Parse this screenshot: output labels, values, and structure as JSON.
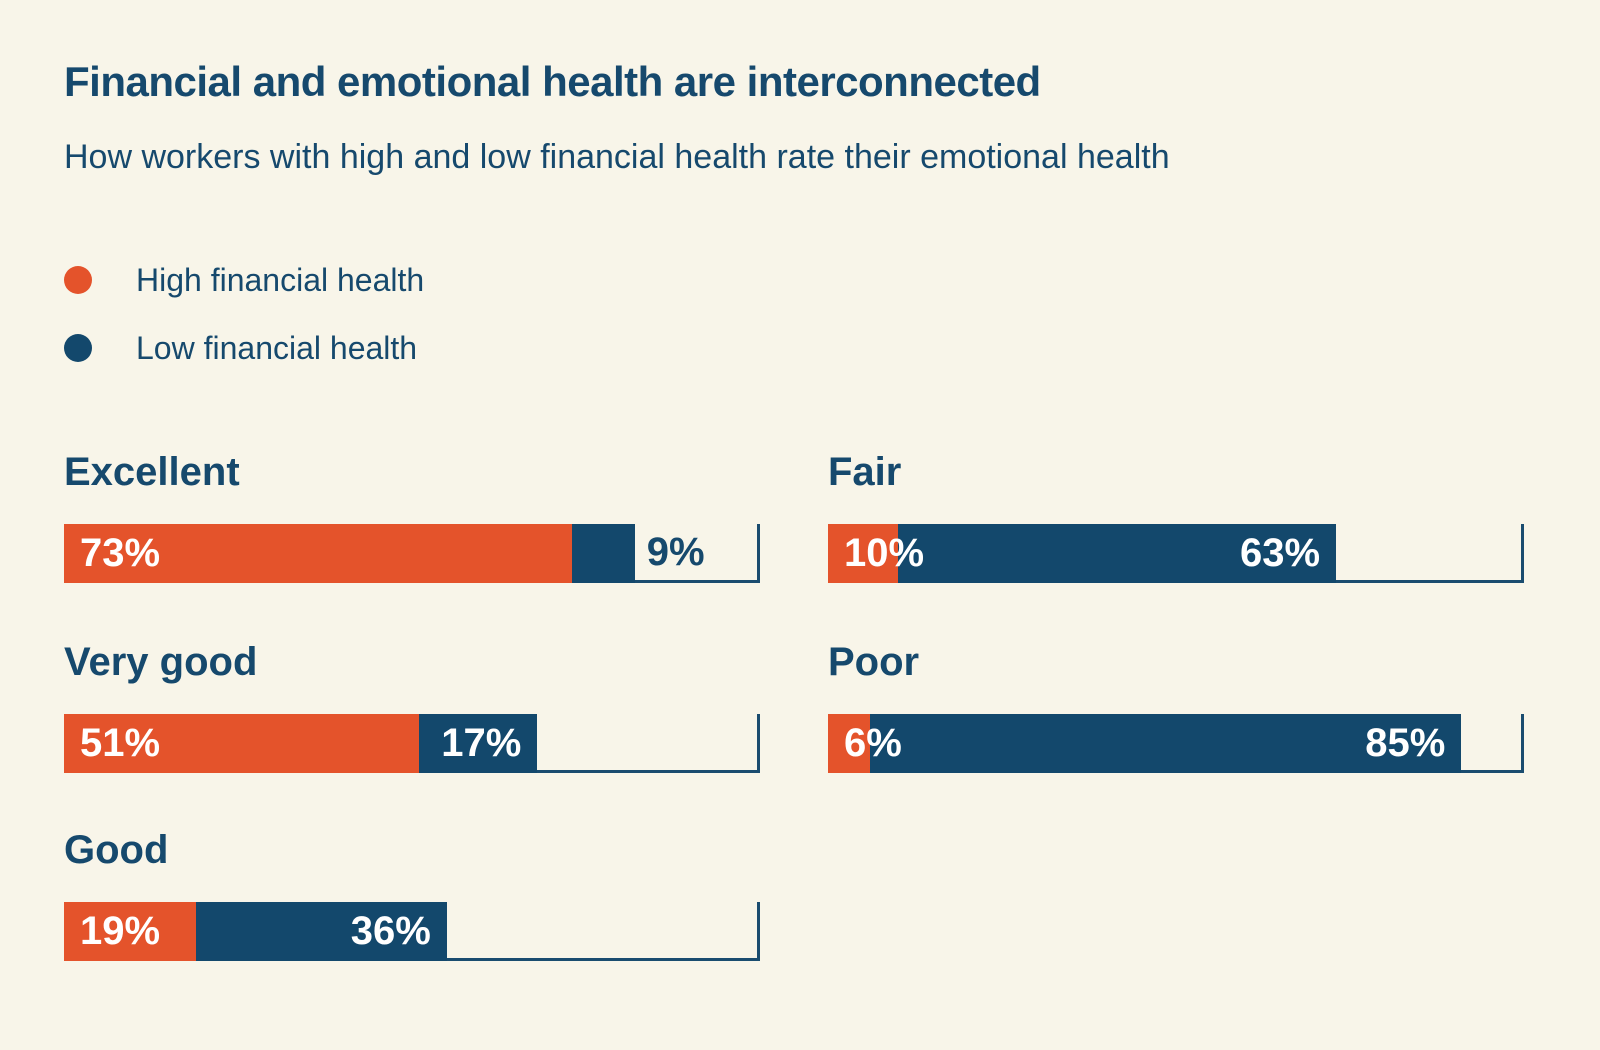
{
  "page": {
    "background_color": "#F8F5E9",
    "accent_orange": "#E4532B",
    "accent_navy": "#13486C"
  },
  "chart_data": {
    "type": "bar",
    "orientation": "horizontal",
    "title": "Financial and emotional health are interconnected",
    "subtitle": "How workers with high and low financial health rate their emotional health",
    "categories": [
      "Excellent",
      "Very good",
      "Good",
      "Fair",
      "Poor"
    ],
    "series": [
      {
        "name": "High financial health",
        "color": "#E4532B",
        "values": [
          73,
          51,
          19,
          10,
          6
        ],
        "labels": [
          "73%",
          "51%",
          "19%",
          "10%",
          "6%"
        ]
      },
      {
        "name": "Low financial health",
        "color": "#13486C",
        "values": [
          9,
          17,
          36,
          63,
          85
        ],
        "labels": [
          "9%",
          "17%",
          "36%",
          "63%",
          "85%"
        ]
      }
    ],
    "unit": "%",
    "xlim": [
      0,
      100
    ],
    "grid": false,
    "legend_position": "top-left",
    "layout_columns": {
      "left": [
        "Excellent",
        "Very good",
        "Good"
      ],
      "right": [
        "Fair",
        "Poor"
      ]
    }
  }
}
